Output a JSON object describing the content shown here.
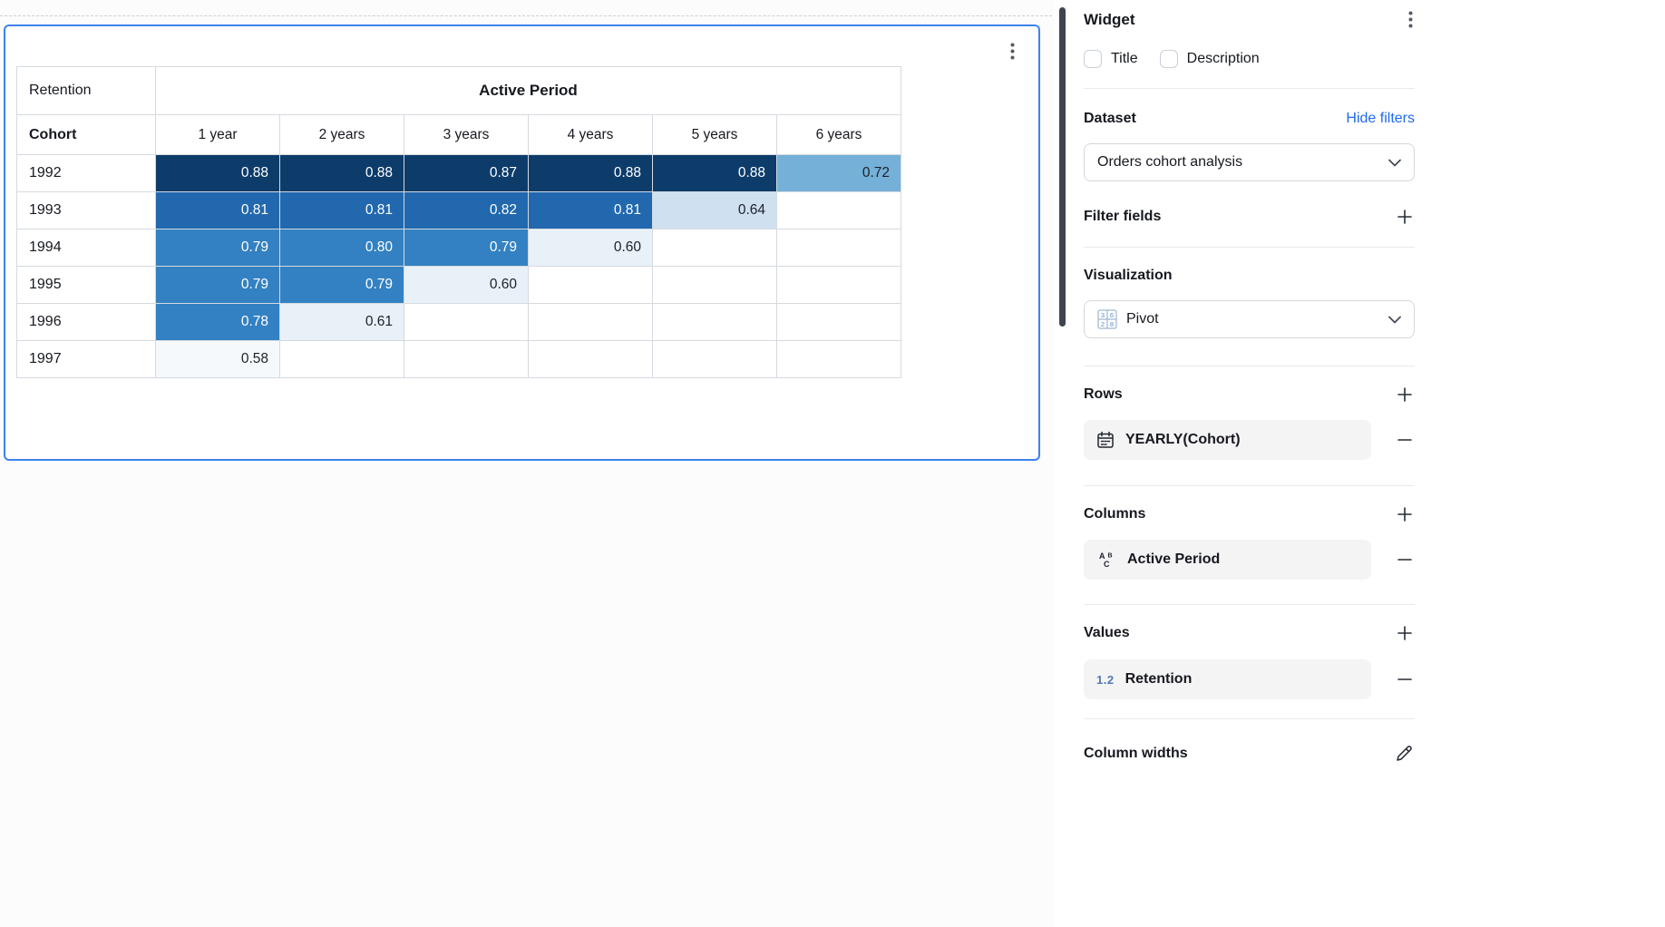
{
  "pivot": {
    "corner_label": "Retention",
    "column_group_label": "Active Period",
    "row_dim_label": "Cohort",
    "columns": [
      "1 year",
      "2 years",
      "3 years",
      "4 years",
      "5 years",
      "6 years"
    ],
    "rows": [
      {
        "cohort": "1992",
        "values": [
          "0.88",
          "0.88",
          "0.87",
          "0.88",
          "0.88",
          "0.72"
        ]
      },
      {
        "cohort": "1993",
        "values": [
          "0.81",
          "0.81",
          "0.82",
          "0.81",
          "0.64",
          ""
        ]
      },
      {
        "cohort": "1994",
        "values": [
          "0.79",
          "0.80",
          "0.79",
          "0.60",
          "",
          ""
        ]
      },
      {
        "cohort": "1995",
        "values": [
          "0.79",
          "0.79",
          "0.60",
          "",
          "",
          ""
        ]
      },
      {
        "cohort": "1996",
        "values": [
          "0.78",
          "0.61",
          "",
          "",
          "",
          ""
        ]
      },
      {
        "cohort": "1997",
        "values": [
          "0.58",
          "",
          "",
          "",
          "",
          ""
        ]
      }
    ],
    "heat_scale": [
      {
        "min": 0.85,
        "bg": "#0d3c6b",
        "fg": "#ffffff"
      },
      {
        "min": 0.805,
        "bg": "#2168ae",
        "fg": "#ffffff"
      },
      {
        "min": 0.75,
        "bg": "#3381c2",
        "fg": "#ffffff"
      },
      {
        "min": 0.7,
        "bg": "#74b0d8",
        "fg": "#1c2129"
      },
      {
        "min": 0.625,
        "bg": "#cfe0f0",
        "fg": "#1c2129"
      },
      {
        "min": 0.595,
        "bg": "#e8f0f8",
        "fg": "#1c2129"
      },
      {
        "min": 0,
        "bg": "#f6f9fc",
        "fg": "#1c2129"
      }
    ]
  },
  "panel": {
    "title": "Widget",
    "title_checkbox": {
      "label": "Title",
      "checked": false
    },
    "description_checkbox": {
      "label": "Description",
      "checked": false
    },
    "dataset": {
      "heading": "Dataset",
      "hide_filters_link": "Hide filters",
      "selected": "Orders cohort analysis"
    },
    "filter_fields": {
      "heading": "Filter fields"
    },
    "visualization": {
      "heading": "Visualization",
      "selected": "Pivot"
    },
    "rows_section": {
      "heading": "Rows",
      "items": [
        {
          "icon": "calendar-icon",
          "label": "YEARLY(Cohort)"
        }
      ]
    },
    "columns_section": {
      "heading": "Columns",
      "items": [
        {
          "icon": "text-field-icon",
          "label": "Active Period"
        }
      ]
    },
    "values_section": {
      "heading": "Values",
      "items": [
        {
          "icon": "numeric-field-icon",
          "icon_text": "1.2",
          "label": "Retention"
        }
      ]
    },
    "column_widths": {
      "heading": "Column widths"
    }
  },
  "colors": {
    "selection_border": "#3c83f0",
    "link_blue": "#2068f0",
    "field_item_bg": "#f4f4f5",
    "scrollbar": "#3e4450"
  }
}
